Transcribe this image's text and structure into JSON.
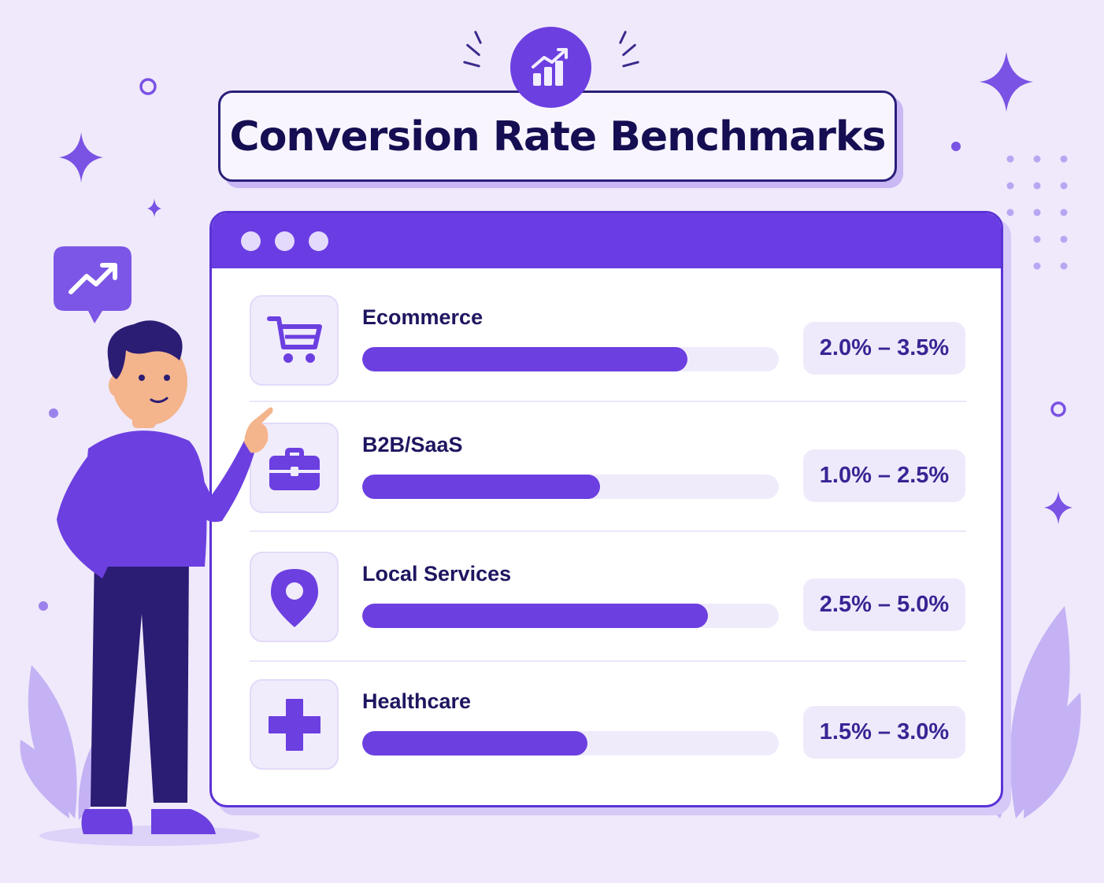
{
  "title": "Conversion Rate Benchmarks",
  "colors": {
    "background": "#EFE9FB",
    "accent": "#6C3FE0",
    "window_header": "#6A3CE3",
    "text_dark": "#150E52",
    "range_text": "#3A2494"
  },
  "title_icon": "bar-chart-trending-up-icon",
  "speech_bubble_icon": "trending-up-arrow-icon",
  "benchmarks": [
    {
      "label": "Ecommerce",
      "range": "2.0% – 3.5%",
      "icon": "shopping-cart-icon",
      "bar_fraction": 0.78
    },
    {
      "label": "B2B/SaaS",
      "range": "1.0% – 2.5%",
      "icon": "briefcase-icon",
      "bar_fraction": 0.57
    },
    {
      "label": "Local Services",
      "range": "2.5% – 5.0%",
      "icon": "location-pin-icon",
      "bar_fraction": 0.83
    },
    {
      "label": "Healthcare",
      "range": "1.5% – 3.0%",
      "icon": "medical-cross-icon",
      "bar_fraction": 0.54
    }
  ]
}
